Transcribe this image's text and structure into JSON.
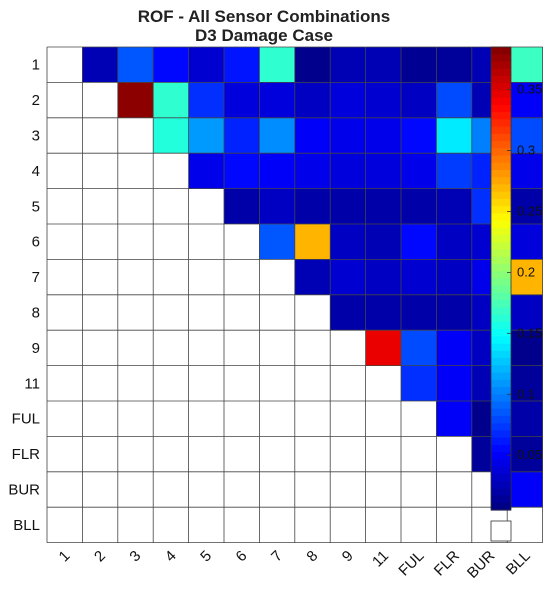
{
  "chart_data": {
    "type": "heatmap",
    "title": "ROF - All Sensor Combinations",
    "subtitle": "D3 Damage Case",
    "row_labels": [
      "1",
      "2",
      "3",
      "4",
      "5",
      "6",
      "7",
      "8",
      "9",
      "11",
      "FUL",
      "FLR",
      "BUR",
      "BLL"
    ],
    "col_labels": [
      "1",
      "2",
      "3",
      "4",
      "5",
      "6",
      "7",
      "8",
      "9",
      "11",
      "FUL",
      "FLR",
      "BUR",
      "BLL"
    ],
    "values": [
      [
        null,
        0.025,
        0.085,
        0.055,
        0.035,
        0.06,
        0.165,
        0.01,
        0.025,
        0.025,
        0.012,
        0.015,
        0.025,
        0.17
      ],
      [
        null,
        null,
        0.38,
        0.165,
        0.07,
        0.04,
        0.04,
        0.03,
        0.04,
        0.035,
        0.03,
        0.08,
        0.025,
        0.05
      ],
      [
        null,
        null,
        null,
        0.16,
        0.11,
        0.065,
        0.105,
        0.05,
        0.045,
        0.045,
        0.055,
        0.14,
        0.1,
        0.08
      ],
      [
        null,
        null,
        null,
        null,
        0.045,
        0.055,
        0.05,
        0.045,
        0.04,
        0.04,
        0.045,
        0.075,
        0.065,
        0.045
      ],
      [
        null,
        null,
        null,
        null,
        null,
        0.02,
        0.03,
        0.02,
        0.02,
        0.02,
        0.02,
        0.025,
        0.07,
        0.02
      ],
      [
        null,
        null,
        null,
        null,
        null,
        null,
        0.085,
        0.27,
        0.03,
        0.025,
        0.055,
        0.03,
        0.035,
        0.04
      ],
      [
        null,
        null,
        null,
        null,
        null,
        null,
        null,
        0.025,
        0.035,
        0.03,
        0.035,
        0.03,
        0.045,
        0.27
      ],
      [
        null,
        null,
        null,
        null,
        null,
        null,
        null,
        null,
        0.02,
        0.02,
        0.02,
        0.02,
        0.03,
        0.03
      ],
      [
        null,
        null,
        null,
        null,
        null,
        null,
        null,
        null,
        null,
        0.345,
        0.08,
        0.05,
        0.03,
        0.01
      ],
      [
        null,
        null,
        null,
        null,
        null,
        null,
        null,
        null,
        null,
        null,
        0.07,
        0.05,
        0.025,
        0.015
      ],
      [
        null,
        null,
        null,
        null,
        null,
        null,
        null,
        null,
        null,
        null,
        null,
        0.05,
        0.01,
        0.02
      ],
      [
        null,
        null,
        null,
        null,
        null,
        null,
        null,
        null,
        null,
        null,
        null,
        null,
        0.015,
        0.015
      ],
      [
        null,
        null,
        null,
        null,
        null,
        null,
        null,
        null,
        null,
        null,
        null,
        null,
        null,
        0.05
      ],
      [
        null,
        null,
        null,
        null,
        null,
        null,
        null,
        null,
        null,
        null,
        null,
        null,
        null,
        null
      ]
    ],
    "colorbar": {
      "colormap": "jet",
      "range": [
        0.005,
        0.385
      ],
      "ticks": [
        0.05,
        0.1,
        0.15,
        0.2,
        0.25,
        0.3,
        0.35
      ],
      "tick_labels": [
        "0.05",
        "0.1",
        "0.15",
        "0.2",
        "0.25",
        "0.3",
        "0.35"
      ]
    }
  }
}
